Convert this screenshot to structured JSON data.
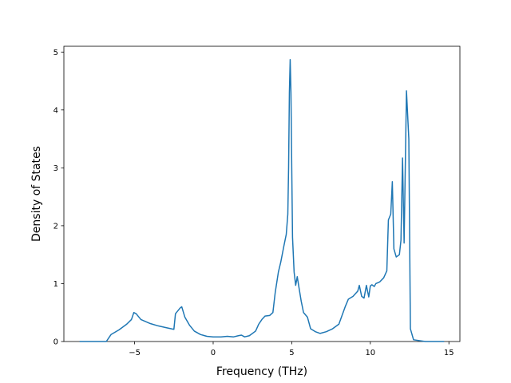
{
  "chart_data": {
    "type": "line",
    "xlabel": "Frequency (THz)",
    "ylabel": "Density of States",
    "xlim": [
      -9.5,
      15.7
    ],
    "ylim": [
      0,
      5.1
    ],
    "xticks": [
      -5,
      0,
      5,
      10,
      15
    ],
    "yticks": [
      0,
      1,
      2,
      3,
      4,
      5
    ],
    "grid": false,
    "series": [
      {
        "color": "#1f77b4",
        "points": [
          [
            -8.5,
            0
          ],
          [
            -6.8,
            0
          ],
          [
            -6.5,
            0.12
          ],
          [
            -6.0,
            0.2
          ],
          [
            -5.5,
            0.3
          ],
          [
            -5.2,
            0.38
          ],
          [
            -5.05,
            0.5
          ],
          [
            -4.9,
            0.48
          ],
          [
            -4.6,
            0.38
          ],
          [
            -4.0,
            0.31
          ],
          [
            -3.5,
            0.27
          ],
          [
            -3.0,
            0.24
          ],
          [
            -2.5,
            0.21
          ],
          [
            -2.4,
            0.48
          ],
          [
            -2.1,
            0.58
          ],
          [
            -2.0,
            0.6
          ],
          [
            -1.8,
            0.42
          ],
          [
            -1.5,
            0.28
          ],
          [
            -1.2,
            0.18
          ],
          [
            -0.8,
            0.12
          ],
          [
            -0.4,
            0.09
          ],
          [
            0.0,
            0.08
          ],
          [
            0.5,
            0.08
          ],
          [
            0.9,
            0.09
          ],
          [
            1.3,
            0.08
          ],
          [
            1.6,
            0.1
          ],
          [
            1.8,
            0.11
          ],
          [
            2.0,
            0.08
          ],
          [
            2.3,
            0.1
          ],
          [
            2.7,
            0.18
          ],
          [
            2.9,
            0.3
          ],
          [
            3.1,
            0.38
          ],
          [
            3.3,
            0.44
          ],
          [
            3.6,
            0.45
          ],
          [
            3.8,
            0.5
          ],
          [
            3.95,
            0.85
          ],
          [
            4.15,
            1.2
          ],
          [
            4.3,
            1.37
          ],
          [
            4.5,
            1.65
          ],
          [
            4.65,
            1.85
          ],
          [
            4.75,
            2.2
          ],
          [
            4.8,
            3.0
          ],
          [
            4.85,
            4.3
          ],
          [
            4.9,
            4.87
          ],
          [
            4.95,
            4.3
          ],
          [
            5.0,
            3.0
          ],
          [
            5.05,
            1.8
          ],
          [
            5.15,
            1.2
          ],
          [
            5.25,
            0.97
          ],
          [
            5.35,
            1.12
          ],
          [
            5.45,
            0.95
          ],
          [
            5.6,
            0.7
          ],
          [
            5.75,
            0.5
          ],
          [
            6.0,
            0.42
          ],
          [
            6.2,
            0.22
          ],
          [
            6.5,
            0.17
          ],
          [
            6.8,
            0.14
          ],
          [
            7.2,
            0.17
          ],
          [
            7.6,
            0.22
          ],
          [
            8.0,
            0.3
          ],
          [
            8.2,
            0.45
          ],
          [
            8.4,
            0.6
          ],
          [
            8.6,
            0.73
          ],
          [
            8.9,
            0.78
          ],
          [
            9.2,
            0.87
          ],
          [
            9.3,
            0.97
          ],
          [
            9.45,
            0.78
          ],
          [
            9.6,
            0.75
          ],
          [
            9.75,
            0.97
          ],
          [
            9.9,
            0.77
          ],
          [
            10.0,
            0.96
          ],
          [
            10.1,
            0.98
          ],
          [
            10.25,
            0.95
          ],
          [
            10.35,
            1.0
          ],
          [
            10.6,
            1.03
          ],
          [
            10.85,
            1.1
          ],
          [
            11.05,
            1.22
          ],
          [
            11.15,
            2.1
          ],
          [
            11.3,
            2.2
          ],
          [
            11.4,
            2.76
          ],
          [
            11.5,
            1.6
          ],
          [
            11.65,
            1.46
          ],
          [
            11.85,
            1.5
          ],
          [
            11.95,
            1.75
          ],
          [
            12.05,
            3.17
          ],
          [
            12.15,
            1.7
          ],
          [
            12.3,
            4.33
          ],
          [
            12.45,
            3.5
          ],
          [
            12.55,
            0.22
          ],
          [
            12.75,
            0.03
          ],
          [
            13.5,
            0.0
          ],
          [
            14.7,
            0.0
          ]
        ]
      }
    ]
  }
}
